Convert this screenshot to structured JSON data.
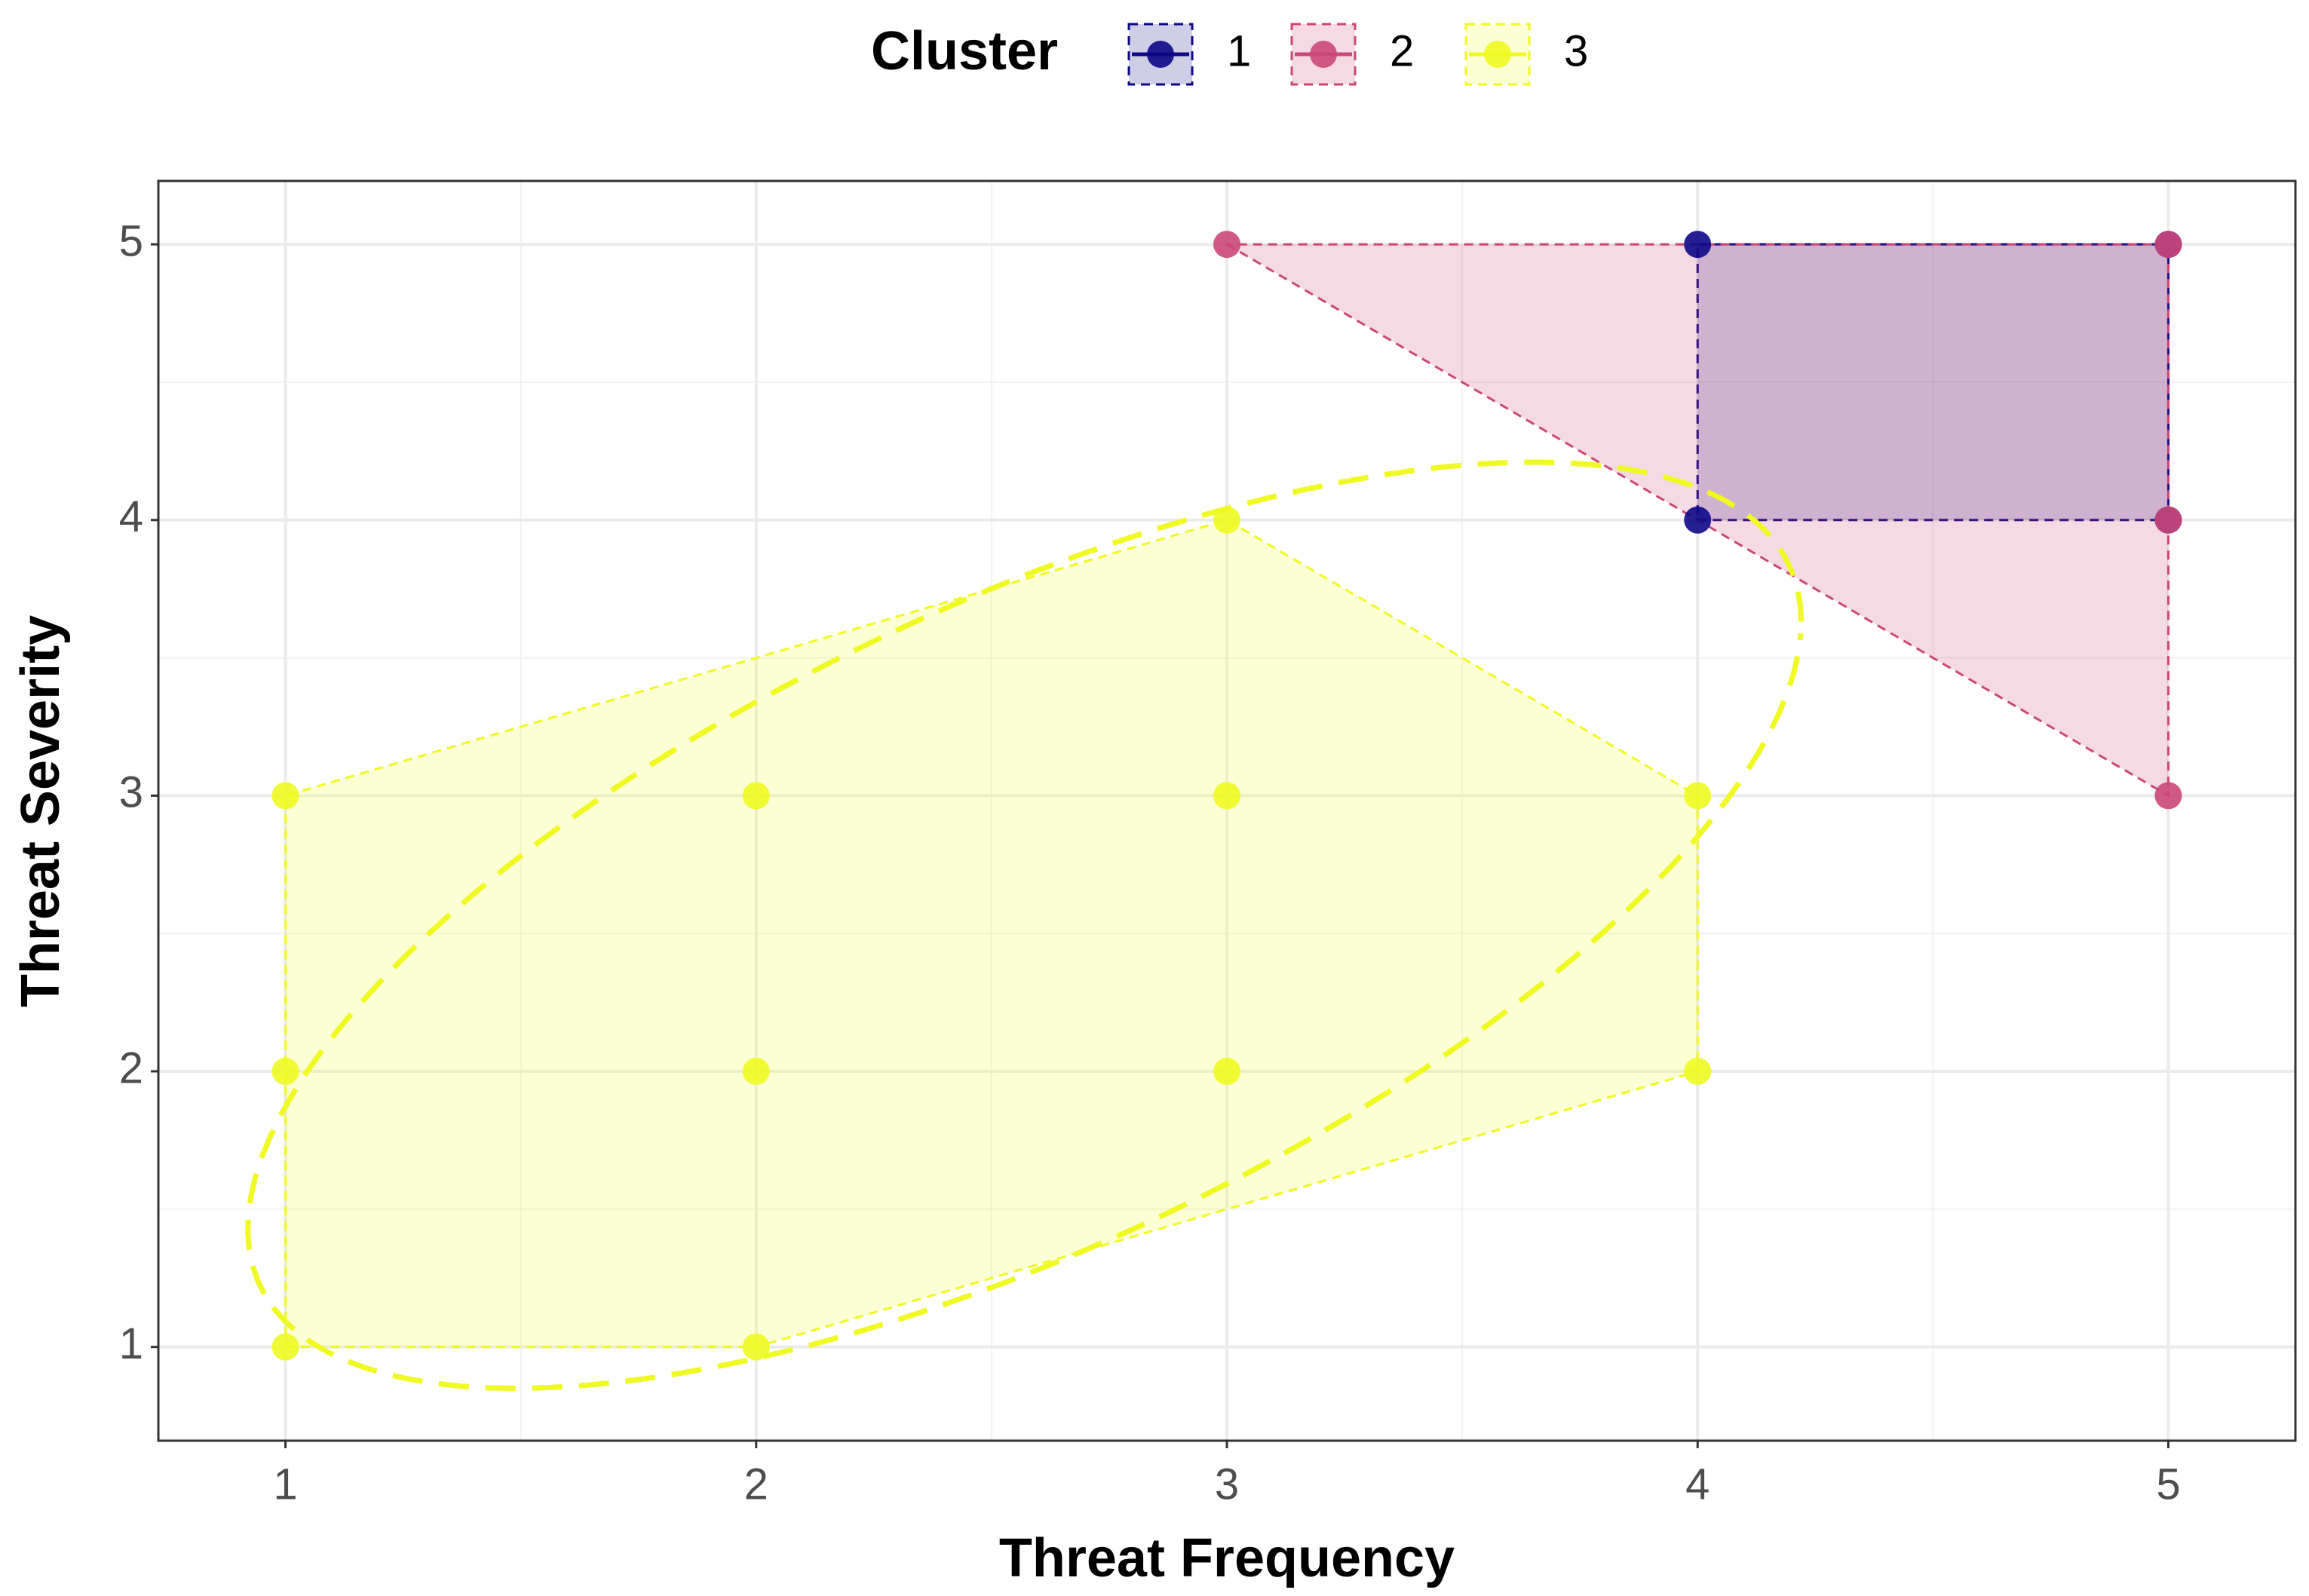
{
  "chart_data": {
    "type": "scatter",
    "legend_title": "Cluster",
    "legend_position": "top",
    "x_label": "Threat Frequency",
    "y_label": "Threat Severity",
    "xlim": [
      0.73,
      5.27
    ],
    "ylim": [
      0.66,
      5.23
    ],
    "xticks": [
      1,
      2,
      3,
      4,
      5
    ],
    "yticks": [
      1,
      2,
      3,
      4,
      5
    ],
    "grid": true,
    "series": [
      {
        "name": "1",
        "color": "#0d0887",
        "x": [
          4,
          4,
          5,
          5
        ],
        "values": [
          4,
          5,
          4,
          5
        ]
      },
      {
        "name": "2",
        "color": "#cc4778",
        "x": [
          3,
          5,
          5,
          5
        ],
        "values": [
          5,
          5,
          4,
          3
        ]
      },
      {
        "name": "3",
        "color": "#f0f921",
        "ellipse": true,
        "x": [
          1,
          1,
          1,
          2,
          2,
          2,
          3,
          3,
          3,
          4,
          4
        ],
        "values": [
          1,
          2,
          3,
          1,
          2,
          3,
          2,
          3,
          4,
          2,
          3
        ]
      }
    ]
  }
}
